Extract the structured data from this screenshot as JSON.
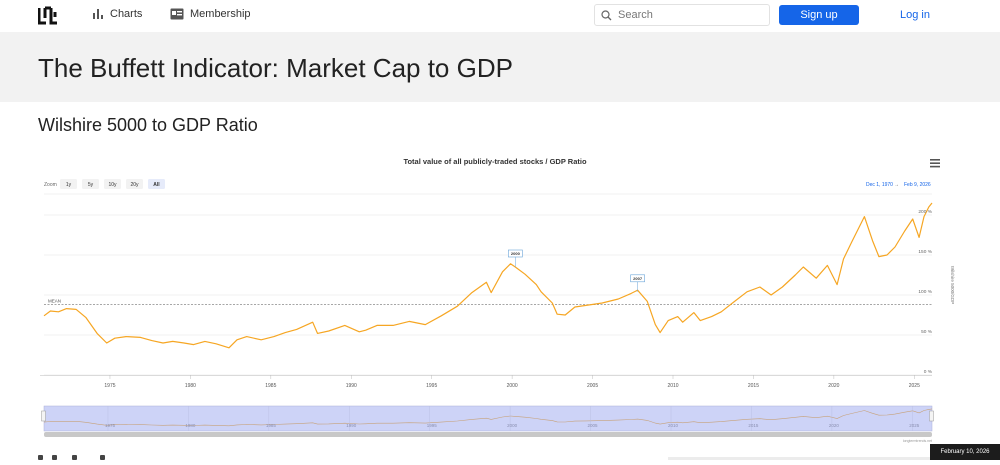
{
  "nav": {
    "charts_label": "Charts",
    "membership_label": "Membership",
    "search_placeholder": "Search",
    "signup_label": "Sign up",
    "login_label": "Log in"
  },
  "page": {
    "title": "The Buffett Indicator: Market Cap to GDP",
    "subtitle": "Wilshire 5000 to GDP Ratio",
    "footer_date": "February 10, 2026"
  },
  "colors": {
    "accent": "#1565e8",
    "series": "#f6a623",
    "navigator_fill": "#cdd3f7"
  },
  "chart_data": {
    "type": "line",
    "title": "Total value of all publicly-traded stocks / GDP Ratio",
    "ylabel": "Wilshire 5000/GDP",
    "zoom_label": "Zoom",
    "zoom_buttons": [
      "1y",
      "5y",
      "10y",
      "20y",
      "All"
    ],
    "zoom_selected": "All",
    "date_from": "Dec 1, 1970",
    "date_to": "Feb 9, 2026",
    "date_sep": "→",
    "mean_label": "MEAN",
    "mean_value": 88,
    "xlim": [
      1970.9,
      2026.1
    ],
    "ylim": [
      0,
      225
    ],
    "x_ticks": [
      1975,
      1980,
      1985,
      1990,
      1995,
      2000,
      2005,
      2010,
      2015,
      2020,
      2025
    ],
    "y_ticks": [
      {
        "value": 0,
        "label": "0 %"
      },
      {
        "value": 50,
        "label": "50 %"
      },
      {
        "value": 100,
        "label": "100 %"
      },
      {
        "value": 150,
        "label": "150 %"
      },
      {
        "value": 200,
        "label": "200 %"
      }
    ],
    "annotations": [
      {
        "label": "2000",
        "x": 2000.2,
        "y": 140
      },
      {
        "label": "2007",
        "x": 2007.8,
        "y": 109
      }
    ],
    "credit": "longtermtrends.net",
    "series": [
      {
        "points": [
          [
            1970.9,
            74
          ],
          [
            1971.3,
            80
          ],
          [
            1971.8,
            79
          ],
          [
            1972.3,
            83
          ],
          [
            1972.9,
            82
          ],
          [
            1973.5,
            72
          ],
          [
            1974.2,
            52
          ],
          [
            1974.8,
            40
          ],
          [
            1975.3,
            46
          ],
          [
            1976.0,
            48
          ],
          [
            1976.9,
            47
          ],
          [
            1977.6,
            43
          ],
          [
            1978.3,
            40
          ],
          [
            1978.9,
            42
          ],
          [
            1979.6,
            40
          ],
          [
            1980.2,
            38
          ],
          [
            1980.9,
            42
          ],
          [
            1981.6,
            39
          ],
          [
            1982.4,
            34
          ],
          [
            1982.9,
            44
          ],
          [
            1983.5,
            48
          ],
          [
            1984.4,
            44
          ],
          [
            1985.2,
            48
          ],
          [
            1985.9,
            53
          ],
          [
            1986.6,
            57
          ],
          [
            1987.6,
            66
          ],
          [
            1987.9,
            52
          ],
          [
            1988.6,
            55
          ],
          [
            1989.6,
            62
          ],
          [
            1990.5,
            54
          ],
          [
            1990.9,
            56
          ],
          [
            1991.6,
            62
          ],
          [
            1992.6,
            62
          ],
          [
            1993.6,
            67
          ],
          [
            1994.6,
            63
          ],
          [
            1995.6,
            74
          ],
          [
            1996.6,
            86
          ],
          [
            1997.5,
            103
          ],
          [
            1998.4,
            116
          ],
          [
            1998.7,
            103
          ],
          [
            1999.4,
            129
          ],
          [
            1999.9,
            139
          ],
          [
            2000.2,
            135
          ],
          [
            2000.8,
            126
          ],
          [
            2001.5,
            113
          ],
          [
            2001.8,
            104
          ],
          [
            2002.5,
            90
          ],
          [
            2002.8,
            76
          ],
          [
            2003.3,
            75
          ],
          [
            2003.9,
            85
          ],
          [
            2004.6,
            87
          ],
          [
            2005.6,
            90
          ],
          [
            2006.6,
            95
          ],
          [
            2007.4,
            102
          ],
          [
            2007.8,
            106
          ],
          [
            2008.4,
            92
          ],
          [
            2008.9,
            63
          ],
          [
            2009.2,
            53
          ],
          [
            2009.7,
            68
          ],
          [
            2010.3,
            73
          ],
          [
            2010.6,
            66
          ],
          [
            2011.3,
            78
          ],
          [
            2011.7,
            68
          ],
          [
            2012.4,
            73
          ],
          [
            2013.0,
            79
          ],
          [
            2013.7,
            90
          ],
          [
            2014.6,
            104
          ],
          [
            2015.4,
            110
          ],
          [
            2016.1,
            100
          ],
          [
            2016.8,
            110
          ],
          [
            2017.6,
            125
          ],
          [
            2018.1,
            135
          ],
          [
            2018.9,
            121
          ],
          [
            2019.6,
            137
          ],
          [
            2020.2,
            113
          ],
          [
            2020.6,
            145
          ],
          [
            2021.1,
            166
          ],
          [
            2021.9,
            198
          ],
          [
            2022.4,
            168
          ],
          [
            2022.8,
            148
          ],
          [
            2023.3,
            150
          ],
          [
            2023.8,
            160
          ],
          [
            2024.4,
            180
          ],
          [
            2024.9,
            195
          ],
          [
            2025.3,
            172
          ],
          [
            2025.6,
            198
          ],
          [
            2025.9,
            210
          ],
          [
            2026.1,
            215
          ]
        ]
      }
    ]
  }
}
